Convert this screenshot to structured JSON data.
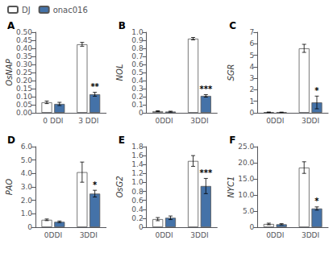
{
  "chart_data": [
    {
      "type": "bar",
      "title": "A",
      "ylabel": "OsNAP",
      "categories": [
        "0 DDI",
        "3 DDI"
      ],
      "series": [
        {
          "name": "DJ",
          "color": "white",
          "values": [
            0.065,
            0.425
          ],
          "errors": [
            0.008,
            0.012
          ]
        },
        {
          "name": "onac016",
          "color": "#4472a8",
          "values": [
            0.055,
            0.115
          ],
          "errors": [
            0.01,
            0.012
          ]
        }
      ],
      "ylim": [
        0,
        0.5
      ],
      "yticks": [
        {
          "value": 0.0,
          "label": "0.00"
        },
        0.05,
        {
          "value": 0.1,
          "label": "0.10"
        },
        0.15,
        {
          "value": 0.2,
          "label": "0.20"
        },
        0.25,
        {
          "value": 0.3,
          "label": "0.30"
        },
        0.35,
        {
          "value": 0.4,
          "label": "0.40"
        },
        0.45,
        {
          "value": 0.5,
          "label": "0.50"
        }
      ],
      "grid": false,
      "legend": "upper left",
      "annotations": [
        {
          "x": "3 DDI",
          "series": "onac016",
          "text": "**"
        }
      ]
    },
    {
      "type": "bar",
      "title": "B",
      "ylabel": "NOL",
      "categories": [
        "0DDI",
        "3DDI"
      ],
      "series": [
        {
          "name": "DJ",
          "color": "white",
          "values": [
            0.02,
            0.92
          ],
          "errors": [
            0.005,
            0.015
          ]
        },
        {
          "name": "onac016",
          "color": "#4472a8",
          "values": [
            0.015,
            0.21
          ],
          "errors": [
            0.005,
            0.015
          ]
        }
      ],
      "ylim": [
        0,
        1.0
      ],
      "yticks": [
        0,
        0.1,
        0.2,
        0.3,
        0.4,
        0.5,
        0.6,
        0.7,
        0.8,
        0.9,
        {
          "value": 1.0,
          "label": "1.0"
        }
      ],
      "grid": false,
      "annotations": [
        {
          "x": "3DDI",
          "series": "onac016",
          "text": "***"
        }
      ]
    },
    {
      "type": "bar",
      "title": "C",
      "ylabel": "SGR",
      "categories": [
        "0DDI",
        "3DDI"
      ],
      "series": [
        {
          "name": "DJ",
          "color": "white",
          "values": [
            0.05,
            5.6
          ],
          "errors": [
            0.02,
            0.35
          ]
        },
        {
          "name": "onac016",
          "color": "#4472a8",
          "values": [
            0.04,
            0.9
          ],
          "errors": [
            0.02,
            0.55
          ]
        }
      ],
      "ylim": [
        0,
        7.0
      ],
      "yticks": [
        0,
        1,
        2,
        3,
        4,
        5,
        6,
        7
      ],
      "grid": false,
      "annotations": [
        {
          "x": "3DDI",
          "series": "onac016",
          "text": "*"
        }
      ]
    },
    {
      "type": "bar",
      "title": "D",
      "ylabel": "PAO",
      "categories": [
        "0DDI",
        "3DDI"
      ],
      "series": [
        {
          "name": "DJ",
          "color": "white",
          "values": [
            0.55,
            4.1
          ],
          "errors": [
            0.06,
            0.75
          ]
        },
        {
          "name": "onac016",
          "color": "#4472a8",
          "values": [
            0.4,
            2.5
          ],
          "errors": [
            0.06,
            0.25
          ]
        }
      ],
      "ylim": [
        0,
        6.0
      ],
      "yticks": [
        0,
        {
          "value": 1.0,
          "label": "1.0"
        },
        {
          "value": 2.0,
          "label": "2.0"
        },
        {
          "value": 3.0,
          "label": "3.0"
        },
        {
          "value": 4.0,
          "label": "4.0"
        },
        {
          "value": 5.0,
          "label": "5.0"
        },
        {
          "value": 6.0,
          "label": "6.0"
        }
      ],
      "grid": false,
      "annotations": [
        {
          "x": "3DDI",
          "series": "onac016",
          "text": "*"
        }
      ]
    },
    {
      "type": "bar",
      "title": "E",
      "ylabel": "OsG2",
      "categories": [
        "0DDI",
        "3DDI"
      ],
      "series": [
        {
          "name": "DJ",
          "color": "white",
          "values": [
            0.18,
            1.48
          ],
          "errors": [
            0.035,
            0.12
          ]
        },
        {
          "name": "onac016",
          "color": "#4472a8",
          "values": [
            0.21,
            0.92
          ],
          "errors": [
            0.04,
            0.17
          ]
        }
      ],
      "ylim": [
        0,
        1.8
      ],
      "yticks": [
        0,
        0.2,
        0.4,
        0.6,
        0.8,
        {
          "value": 1.0,
          "label": "1.0"
        },
        1.2,
        1.4,
        1.6,
        1.8
      ],
      "grid": false,
      "annotations": [
        {
          "x": "3DDI",
          "series": "onac016",
          "text": "***"
        }
      ]
    },
    {
      "type": "bar",
      "title": "F",
      "ylabel": "NYC1",
      "categories": [
        "0DDI",
        "3DDI"
      ],
      "series": [
        {
          "name": "DJ",
          "color": "white",
          "values": [
            1.0,
            18.5
          ],
          "errors": [
            0.25,
            1.8
          ]
        },
        {
          "name": "onac016",
          "color": "#4472a8",
          "values": [
            0.9,
            5.8
          ],
          "errors": [
            0.2,
            0.5
          ]
        }
      ],
      "ylim": [
        0,
        25.0
      ],
      "yticks": [
        0,
        {
          "value": 5.0,
          "label": "5.0"
        },
        {
          "value": 10.0,
          "label": "10.0"
        },
        {
          "value": 15.0,
          "label": "15.0"
        },
        {
          "value": 20.0,
          "label": "20.0"
        },
        {
          "value": 25.0,
          "label": "25.0"
        }
      ],
      "grid": false,
      "annotations": [
        {
          "x": "3DDI",
          "series": "onac016",
          "text": "*"
        }
      ]
    }
  ]
}
